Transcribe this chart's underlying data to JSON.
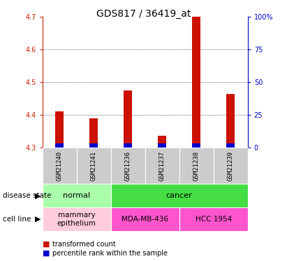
{
  "title": "GDS817 / 36419_at",
  "samples": [
    "GSM21240",
    "GSM21241",
    "GSM21236",
    "GSM21237",
    "GSM21238",
    "GSM21239"
  ],
  "transformed_count": [
    4.41,
    4.39,
    4.475,
    4.335,
    4.7,
    4.465
  ],
  "base_value": 4.3,
  "ylim_left": [
    4.3,
    4.7
  ],
  "ylim_right": [
    0,
    100
  ],
  "yticks_left": [
    4.3,
    4.4,
    4.5,
    4.6,
    4.7
  ],
  "yticks_right": [
    0,
    25,
    50,
    75,
    100
  ],
  "ytick_right_labels": [
    "0",
    "25",
    "50",
    "75",
    "100%"
  ],
  "disease_state": [
    {
      "label": "normal",
      "span": [
        0,
        2
      ],
      "color": "#aaffaa"
    },
    {
      "label": "cancer",
      "span": [
        2,
        6
      ],
      "color": "#44dd44"
    }
  ],
  "cell_line": [
    {
      "label": "mammary\nepithelium",
      "span": [
        0,
        2
      ],
      "color": "#ffccdd"
    },
    {
      "label": "MDA-MB-436",
      "span": [
        2,
        4
      ],
      "color": "#ff55cc"
    },
    {
      "label": "HCC 1954",
      "span": [
        4,
        6
      ],
      "color": "#ff55cc"
    }
  ],
  "bar_color_red": "#cc1100",
  "bar_color_blue": "#0000cc",
  "blue_bar_height": 0.012,
  "bar_width": 0.25,
  "tick_label_fontsize": 7,
  "title_fontsize": 10,
  "left_axis_color": "#cc2200",
  "right_axis_color": "#0000cc",
  "sample_box_color": "#cccccc",
  "grid_dotted_ticks": [
    4.4,
    4.5,
    4.6
  ],
  "label_fontsize": 7.5
}
